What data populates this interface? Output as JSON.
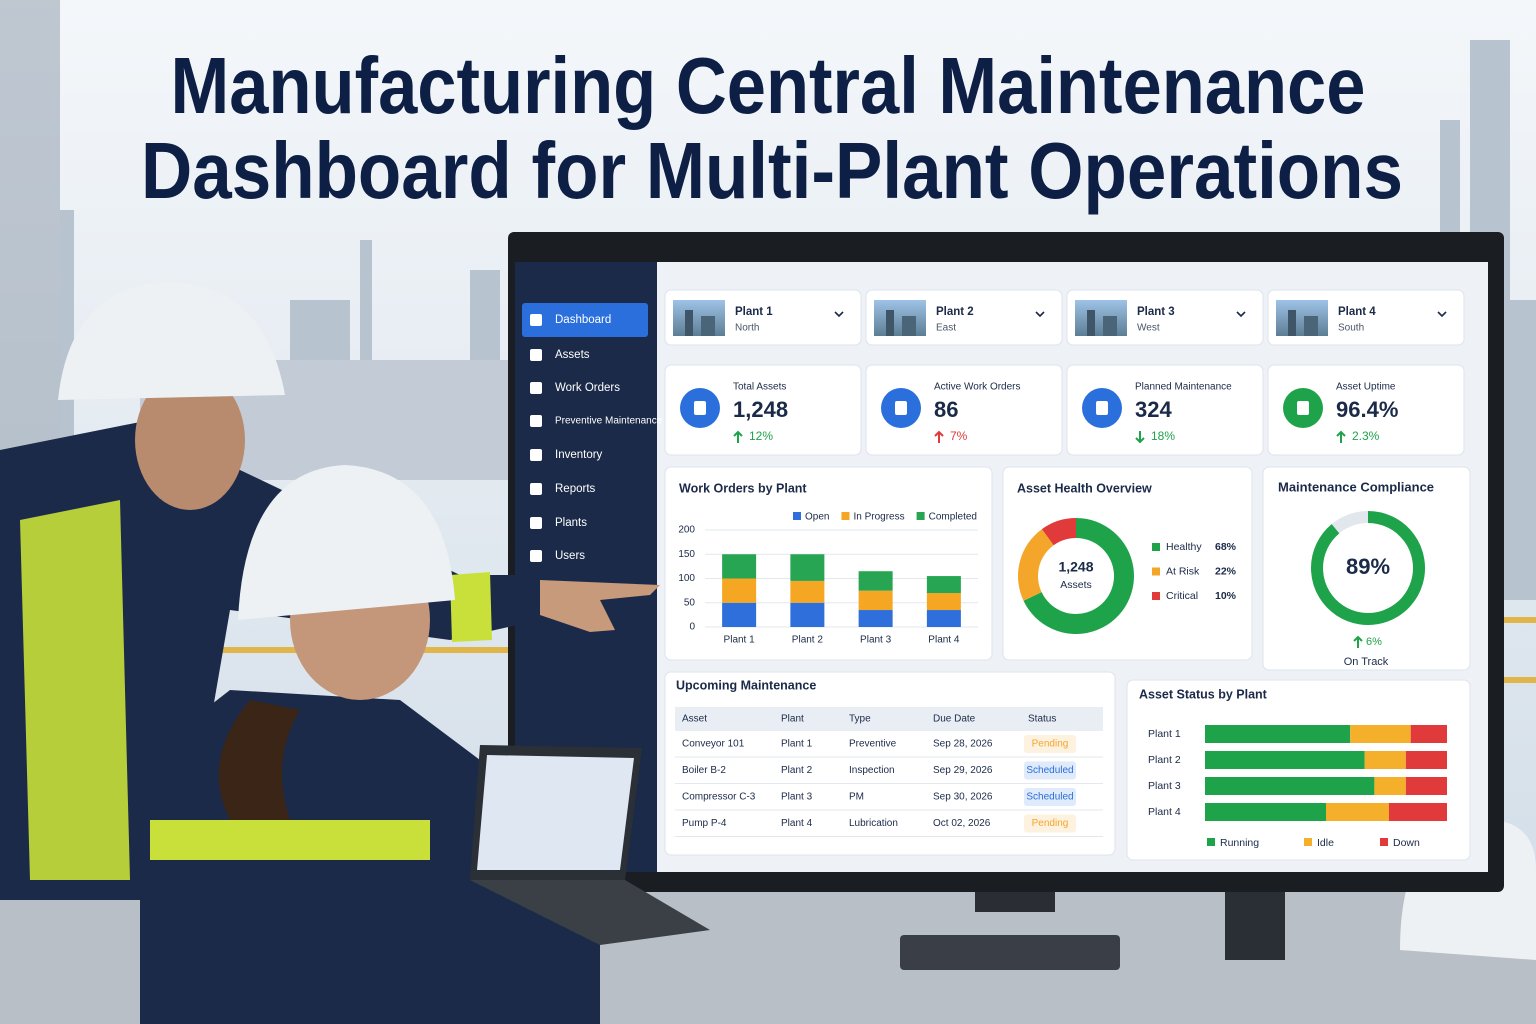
{
  "header": {
    "title_line1": "Manufacturing Central Maintenance",
    "title_line2": "Dashboard for Multi-Plant Operations"
  },
  "sidebar": {
    "items": [
      "Dashboard",
      "Assets",
      "Work Orders",
      "Preventive Maintenance",
      "Inventory",
      "Reports",
      "Plants",
      "Users"
    ],
    "active": 0
  },
  "plants": [
    {
      "name": "Plant 1",
      "region": "North"
    },
    {
      "name": "Plant 2",
      "region": "East"
    },
    {
      "name": "Plant 3",
      "region": "West"
    },
    {
      "name": "Plant 4",
      "region": "South"
    }
  ],
  "kpis": [
    {
      "label": "Total Assets",
      "value": "1,248",
      "change": "12%",
      "trend": "up",
      "change_color": "#1fa34a",
      "icon_color": "#2a6fdb"
    },
    {
      "label": "Active Work Orders",
      "value": "86",
      "change": "7%",
      "trend": "up",
      "change_color": "#e03a3a",
      "icon_color": "#2a6fdb"
    },
    {
      "label": "Planned Maintenance",
      "value": "324",
      "change": "18%",
      "trend": "down",
      "change_color": "#1fa34a",
      "icon_color": "#2a6fdb"
    },
    {
      "label": "Asset Uptime",
      "value": "96.4%",
      "change": "2.3%",
      "trend": "up",
      "change_color": "#1fa34a",
      "icon_color": "#1fa34a"
    }
  ],
  "chart_data": [
    {
      "type": "bar",
      "stacked": true,
      "title": "Work Orders by Plant",
      "categories": [
        "Plant 1",
        "Plant 2",
        "Plant 3",
        "Plant 4"
      ],
      "series": [
        {
          "name": "Open",
          "color": "#2f6fdc",
          "values": [
            50,
            50,
            35,
            35
          ]
        },
        {
          "name": "In Progress",
          "color": "#f5a623",
          "values": [
            50,
            45,
            40,
            35
          ]
        },
        {
          "name": "Completed",
          "color": "#27a552",
          "values": [
            50,
            55,
            40,
            35
          ]
        }
      ],
      "ylim": [
        0,
        200
      ],
      "yticks": [
        0,
        50,
        100,
        150,
        200
      ],
      "legend": "top-right"
    },
    {
      "type": "pie",
      "donut": true,
      "title": "Asset Health Overview",
      "center_value": "1,248",
      "center_label": "Assets",
      "categories": [
        "Healthy",
        "At Risk",
        "Critical"
      ],
      "values": [
        68,
        22,
        10
      ],
      "value_labels": [
        "68%",
        "22%",
        "10%"
      ],
      "colors": [
        "#1fa34a",
        "#f4a62a",
        "#e03a3a"
      ]
    },
    {
      "type": "gauge",
      "title": "Maintenance Compliance",
      "value": 89,
      "value_label": "89%",
      "ylim": [
        0,
        100
      ],
      "change": "6%",
      "trend": "up",
      "status": "On Track",
      "color": "#1fa34a"
    },
    {
      "type": "hbar",
      "stacked": true,
      "title": "Asset Status by Plant",
      "categories": [
        "Plant 1",
        "Plant 2",
        "Plant 3",
        "Plant 4"
      ],
      "series": [
        {
          "name": "Running",
          "color": "#1fa34a",
          "values": [
            60,
            66,
            70,
            50
          ]
        },
        {
          "name": "Idle",
          "color": "#f4b02a",
          "values": [
            25,
            17,
            13,
            26
          ]
        },
        {
          "name": "Down",
          "color": "#e03a3a",
          "values": [
            15,
            17,
            17,
            24
          ]
        }
      ],
      "xlim": [
        0,
        100
      ],
      "legend": "bottom"
    }
  ],
  "table": {
    "title": "Upcoming Maintenance",
    "columns": [
      "Asset",
      "Plant",
      "Type",
      "Due Date",
      "Status"
    ],
    "rows": [
      [
        "Conveyor 101",
        "Plant 1",
        "Preventive",
        "Sep 28, 2026",
        "Pending"
      ],
      [
        "Boiler B-2",
        "Plant 2",
        "Inspection",
        "Sep 29, 2026",
        "Scheduled"
      ],
      [
        "Compressor C-3",
        "Plant 3",
        "PM",
        "Sep 30, 2026",
        "Scheduled"
      ],
      [
        "Pump P-4",
        "Plant 4",
        "Lubrication",
        "Oct 02, 2026",
        "Pending"
      ]
    ],
    "badge_colors": [
      "#f4a62a",
      "#2a6fdb",
      "#2a6fdb",
      "#f4a62a"
    ]
  }
}
